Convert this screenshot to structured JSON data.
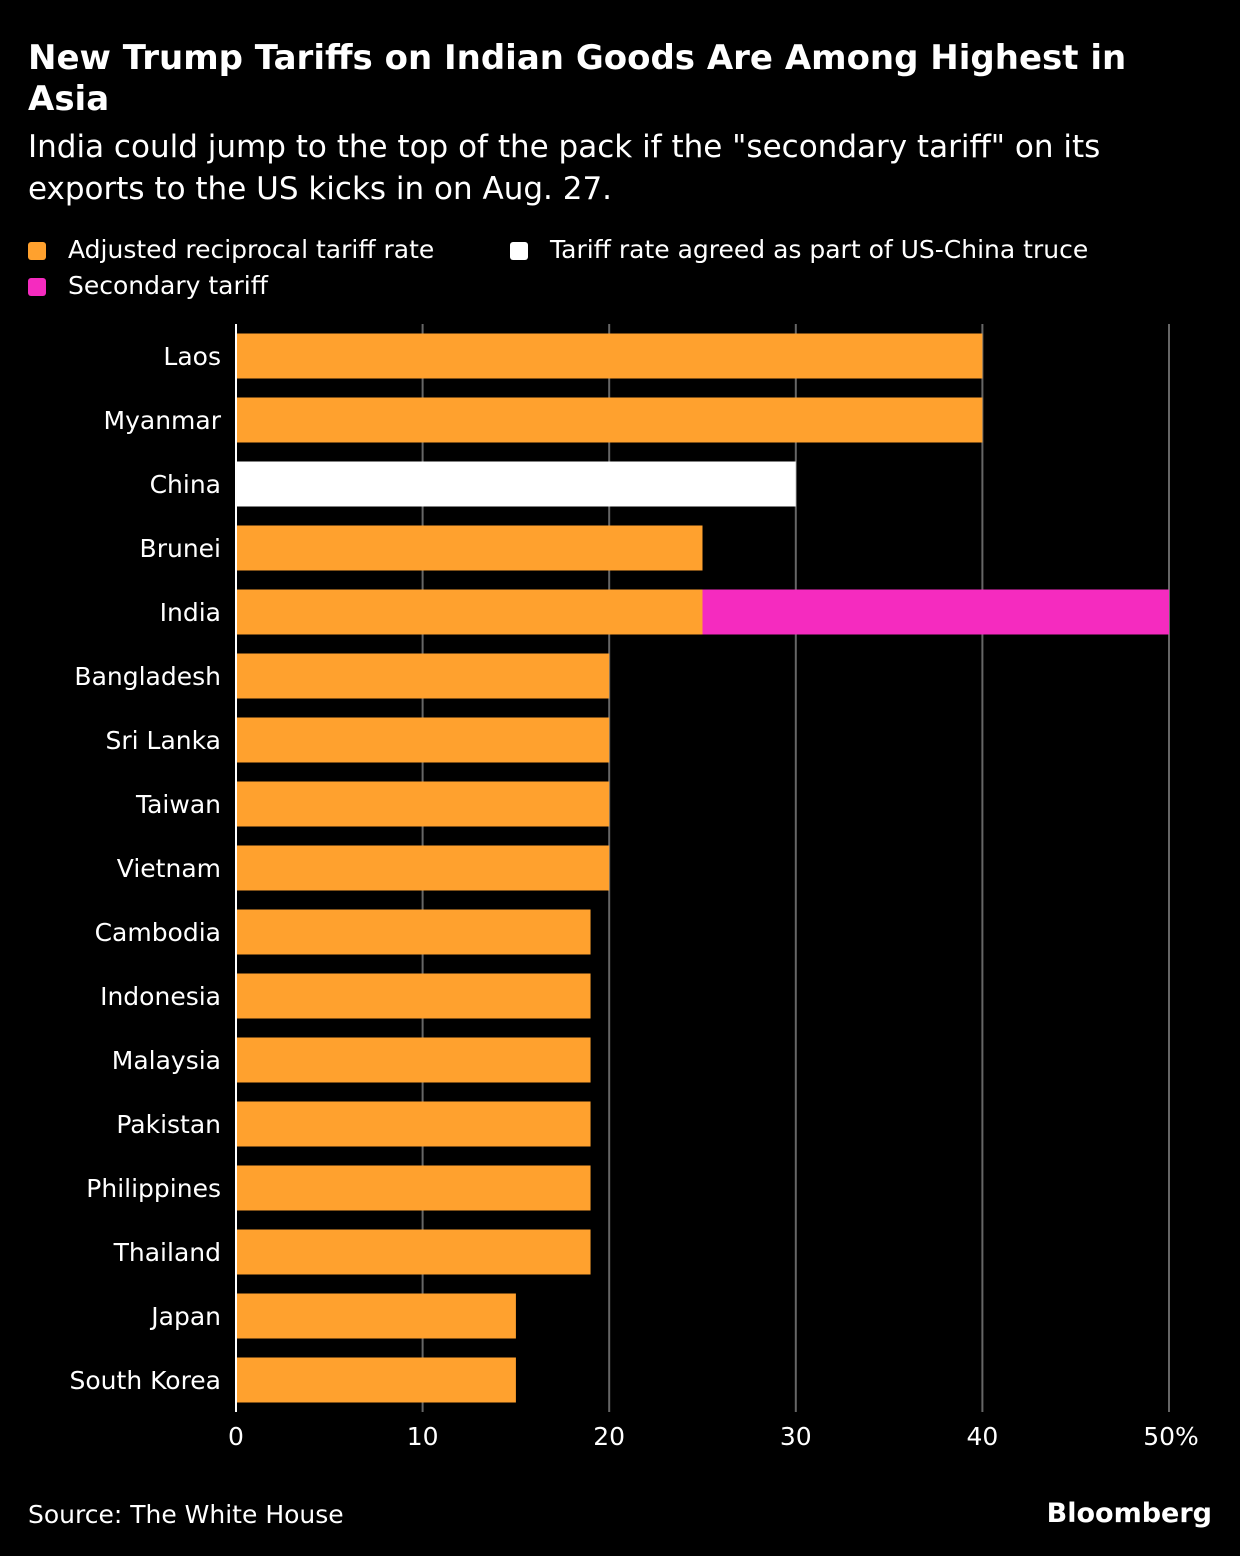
{
  "title": "New Trump Tariffs on Indian Goods Are Among Highest in Asia",
  "subtitle": "India could jump to the top of the pack if the \"secondary tariff\" on its exports to the US kicks in on Aug. 27.",
  "source": "Source: The White House",
  "brand": "Bloomberg",
  "colors": {
    "background": "#000000",
    "reciprocal": "#FFA12E",
    "truce": "#FFFFFF",
    "secondary": "#F52BBF",
    "gridline": "#666666",
    "text": "#FFFFFF"
  },
  "chart_data": {
    "type": "bar",
    "orientation": "horizontal",
    "stacked": true,
    "title": "New Trump Tariffs on Indian Goods Are Among Highest in Asia",
    "subtitle": "India could jump to the top of the pack if the \"secondary tariff\" on its exports to the US kicks in on Aug. 27.",
    "categories": [
      "Laos",
      "Myanmar",
      "China",
      "Brunei",
      "India",
      "Bangladesh",
      "Sri Lanka",
      "Taiwan",
      "Vietnam",
      "Cambodia",
      "Indonesia",
      "Malaysia",
      "Pakistan",
      "Philippines",
      "Thailand",
      "Japan",
      "South Korea"
    ],
    "series": [
      {
        "name": "Adjusted reciprocal tariff rate",
        "color": "#FFA12E",
        "values": [
          40,
          40,
          0,
          25,
          25,
          20,
          20,
          20,
          20,
          19,
          19,
          19,
          19,
          19,
          19,
          15,
          15
        ]
      },
      {
        "name": "Tariff rate agreed as part of US-China truce",
        "color": "#FFFFFF",
        "values": [
          0,
          0,
          30,
          0,
          0,
          0,
          0,
          0,
          0,
          0,
          0,
          0,
          0,
          0,
          0,
          0,
          0
        ]
      },
      {
        "name": "Secondary tariff",
        "color": "#F52BBF",
        "values": [
          0,
          0,
          0,
          0,
          25,
          0,
          0,
          0,
          0,
          0,
          0,
          0,
          0,
          0,
          0,
          0,
          0
        ]
      }
    ],
    "xlim": [
      0,
      50
    ],
    "xticks": [
      0,
      10,
      20,
      30,
      40,
      50
    ],
    "xtick_labels": [
      "0",
      "10",
      "20",
      "30",
      "40",
      "50%"
    ],
    "xlabel": "",
    "ylabel": "",
    "grid": "vertical",
    "legend_position": "top-left"
  }
}
